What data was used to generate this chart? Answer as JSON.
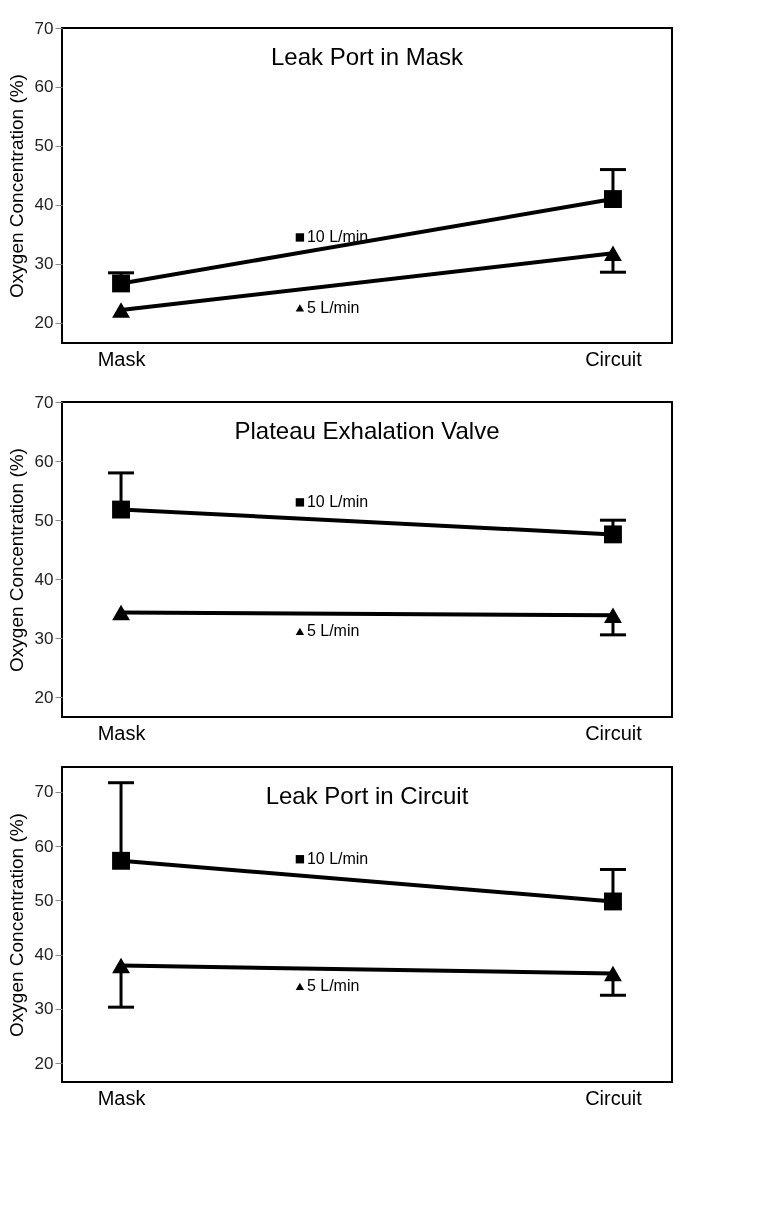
{
  "chart_data": [
    {
      "type": "line",
      "legend": "center",
      "title": "Leak Port in Mask",
      "ylabel": "Oxygen Concentration (%)",
      "categories": [
        "Mask",
        "Circuit"
      ],
      "ylim": [
        16.6,
        70
      ],
      "yticks": [
        20,
        30,
        40,
        50,
        60,
        70
      ],
      "grid": false,
      "series": [
        {
          "name": "10 L/min",
          "color": "#000000",
          "marker": "square",
          "values": [
            26.7,
            41.0
          ],
          "errors": [
            [
              26.7,
              28.5
            ],
            [
              41.0,
              46.0
            ]
          ]
        },
        {
          "name": "5 L/min",
          "color": "#000000",
          "marker": "triangle",
          "values": [
            22.2,
            31.8
          ],
          "errors": [
            null,
            [
              28.6,
              31.8
            ]
          ]
        }
      ]
    },
    {
      "type": "line",
      "legend": "center",
      "title": "Plateau Exhalation Valve",
      "ylabel": "Oxygen Concentration (%)",
      "categories": [
        "Mask",
        "Circuit"
      ],
      "ylim": [
        16.7,
        70
      ],
      "yticks": [
        20,
        30,
        40,
        50,
        60,
        70
      ],
      "grid": false,
      "series": [
        {
          "name": "10 L/min",
          "color": "#000000",
          "marker": "square",
          "values": [
            51.8,
            47.6
          ],
          "errors": [
            [
              51.8,
              58.0
            ],
            [
              47.6,
              50.0
            ]
          ]
        },
        {
          "name": "5 L/min",
          "color": "#000000",
          "marker": "triangle",
          "values": [
            34.4,
            33.9
          ],
          "errors": [
            null,
            [
              30.6,
              33.9
            ]
          ]
        }
      ]
    },
    {
      "type": "line",
      "legend": "center",
      "title": "Leak Port in Circuit",
      "ylabel": "Oxygen Concentration (%)",
      "categories": [
        "Mask",
        "Circuit"
      ],
      "ylim": [
        16.5,
        74.6
      ],
      "yticks": [
        20,
        30,
        40,
        50,
        60,
        70
      ],
      "grid": false,
      "series": [
        {
          "name": "10 L/min",
          "color": "#000000",
          "marker": "square",
          "values": [
            57.3,
            49.8
          ],
          "errors": [
            [
              57.3,
              71.7
            ],
            [
              49.8,
              55.7
            ]
          ]
        },
        {
          "name": "5 L/min",
          "color": "#000000",
          "marker": "triangle",
          "values": [
            38.0,
            36.5
          ],
          "errors": [
            [
              30.3,
              38.0
            ],
            [
              32.5,
              36.5
            ]
          ]
        }
      ]
    }
  ]
}
